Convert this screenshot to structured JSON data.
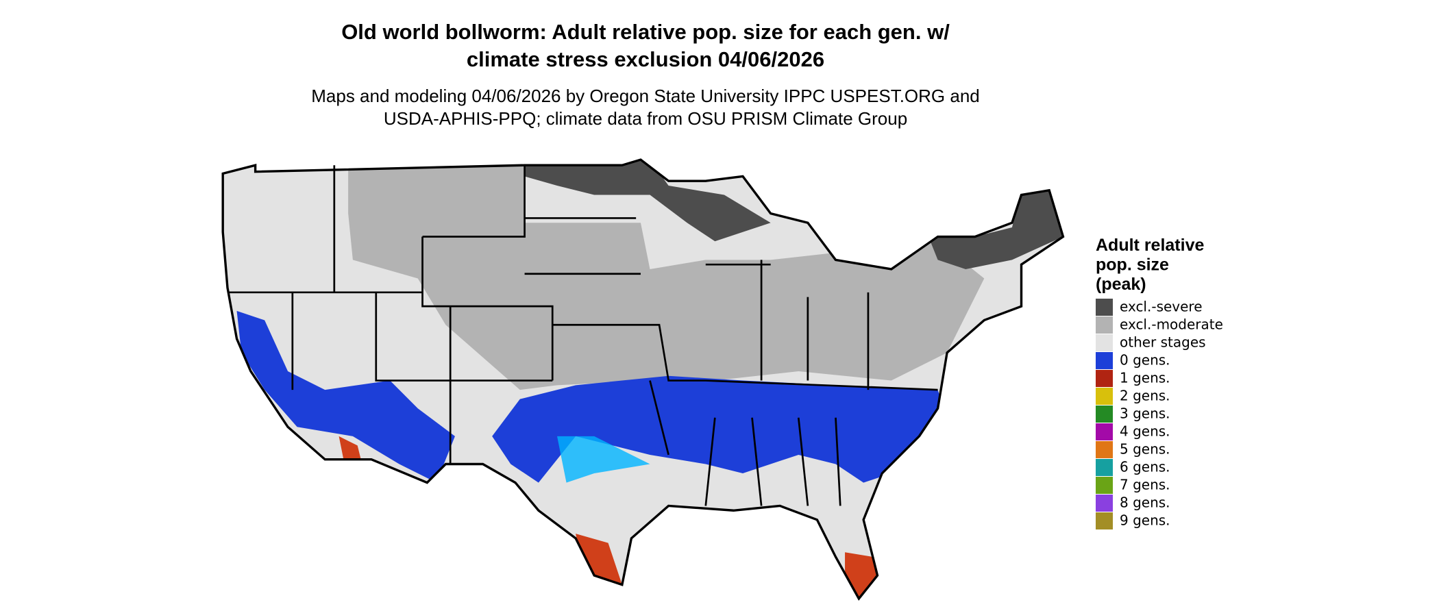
{
  "header": {
    "title": [
      "Old world bollworm: Adult relative pop. size for each gen. w/",
      "climate stress exclusion 04/06/2026"
    ],
    "subtitle": [
      "Maps and modeling 04/06/2026 by Oregon State University IPPC USPEST.ORG and",
      "USDA-APHIS-PPQ; climate data from OSU PRISM Climate Group"
    ]
  },
  "legend": {
    "title": [
      "Adult relative",
      "pop. size",
      "(peak)"
    ],
    "items": [
      {
        "label": "excl.-severe",
        "color": "#4d4d4d"
      },
      {
        "label": "excl.-moderate",
        "color": "#b3b3b3"
      },
      {
        "label": "other stages",
        "color": "#e3e3e3"
      },
      {
        "label": "0 gens.",
        "color": "#1d3fd8"
      },
      {
        "label": "1 gens.",
        "color": "#b02412"
      },
      {
        "label": "2 gens.",
        "color": "#d8c00c"
      },
      {
        "label": "3 gens.",
        "color": "#248a24"
      },
      {
        "label": "4 gens.",
        "color": "#a30aa8"
      },
      {
        "label": "5 gens.",
        "color": "#e07616"
      },
      {
        "label": "6 gens.",
        "color": "#16a0a0"
      },
      {
        "label": "7 gens.",
        "color": "#6aa416"
      },
      {
        "label": "8 gens.",
        "color": "#8a40e0"
      },
      {
        "label": "9 gens.",
        "color": "#a38e26"
      }
    ]
  }
}
